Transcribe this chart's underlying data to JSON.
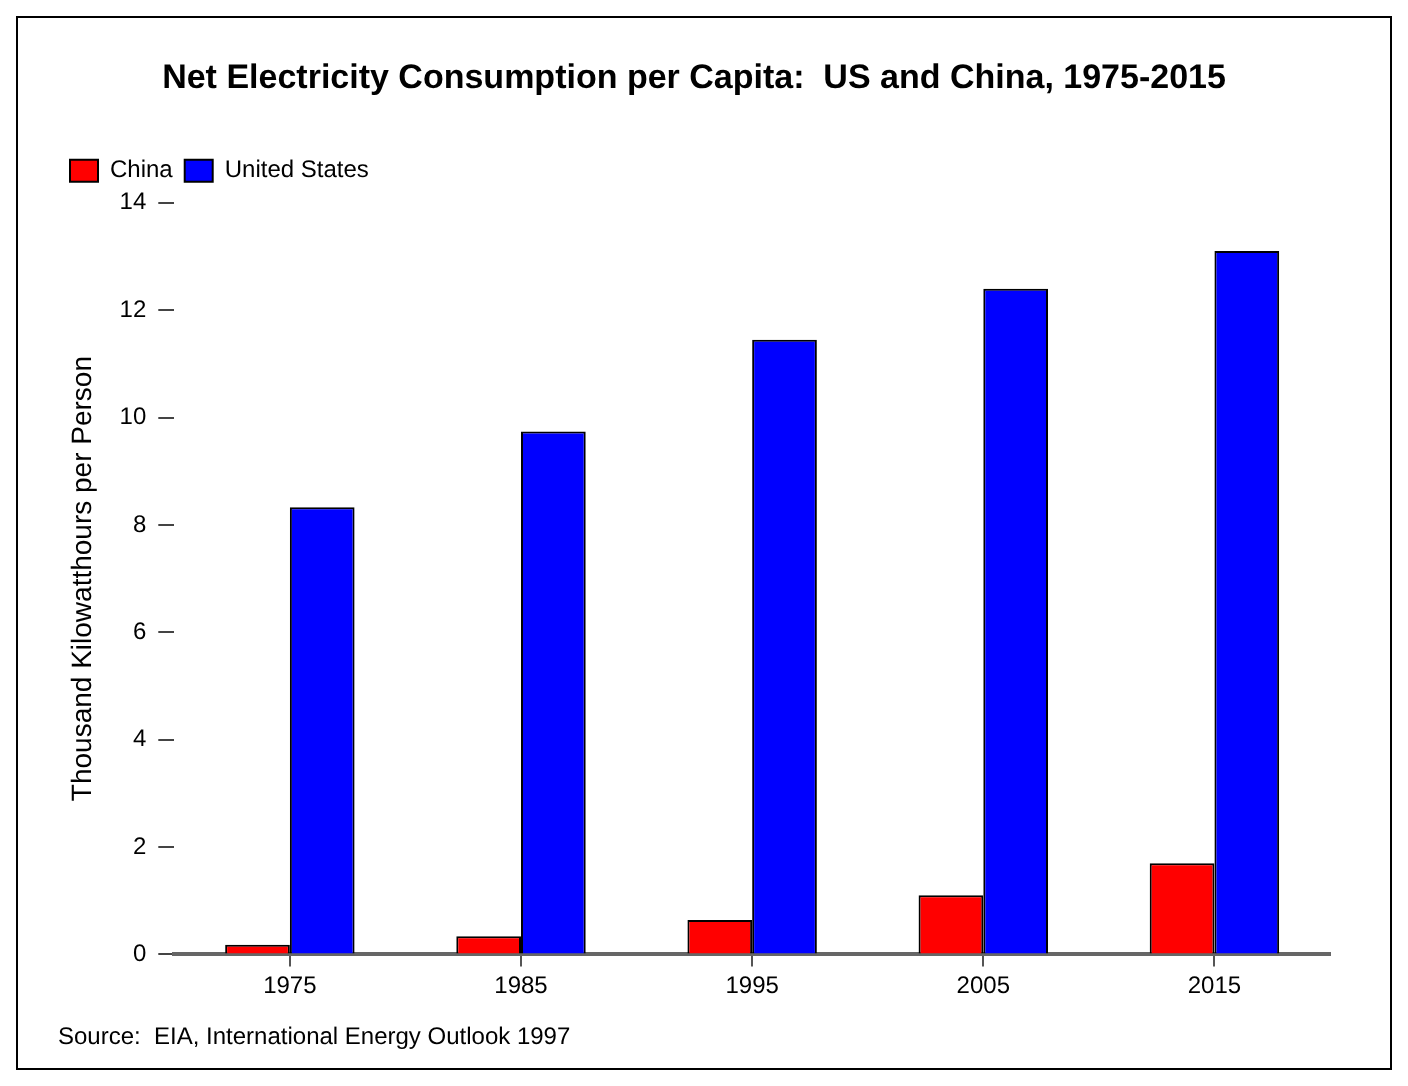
{
  "chart_data": {
    "type": "bar",
    "title": "Net Electricity Consumption per Capita:  US and China, 1975-2015",
    "ylabel": "Thousand Kilowatthours per Person",
    "categories": [
      "1975",
      "1985",
      "1995",
      "2005",
      "2015"
    ],
    "series": [
      {
        "name": "China",
        "color": "#ff0000",
        "values": [
          0.18,
          0.34,
          0.64,
          1.1,
          1.7
        ]
      },
      {
        "name": "United States",
        "color": "#0000ff",
        "values": [
          8.33,
          9.74,
          11.45,
          12.4,
          13.1
        ]
      }
    ],
    "ylim": [
      0,
      14
    ],
    "yticks": [
      0,
      2,
      4,
      6,
      8,
      10,
      12,
      14
    ],
    "grid": false,
    "legend": "top left",
    "annotations": [
      "Source:  EIA, International Energy Outlook 1997"
    ]
  }
}
